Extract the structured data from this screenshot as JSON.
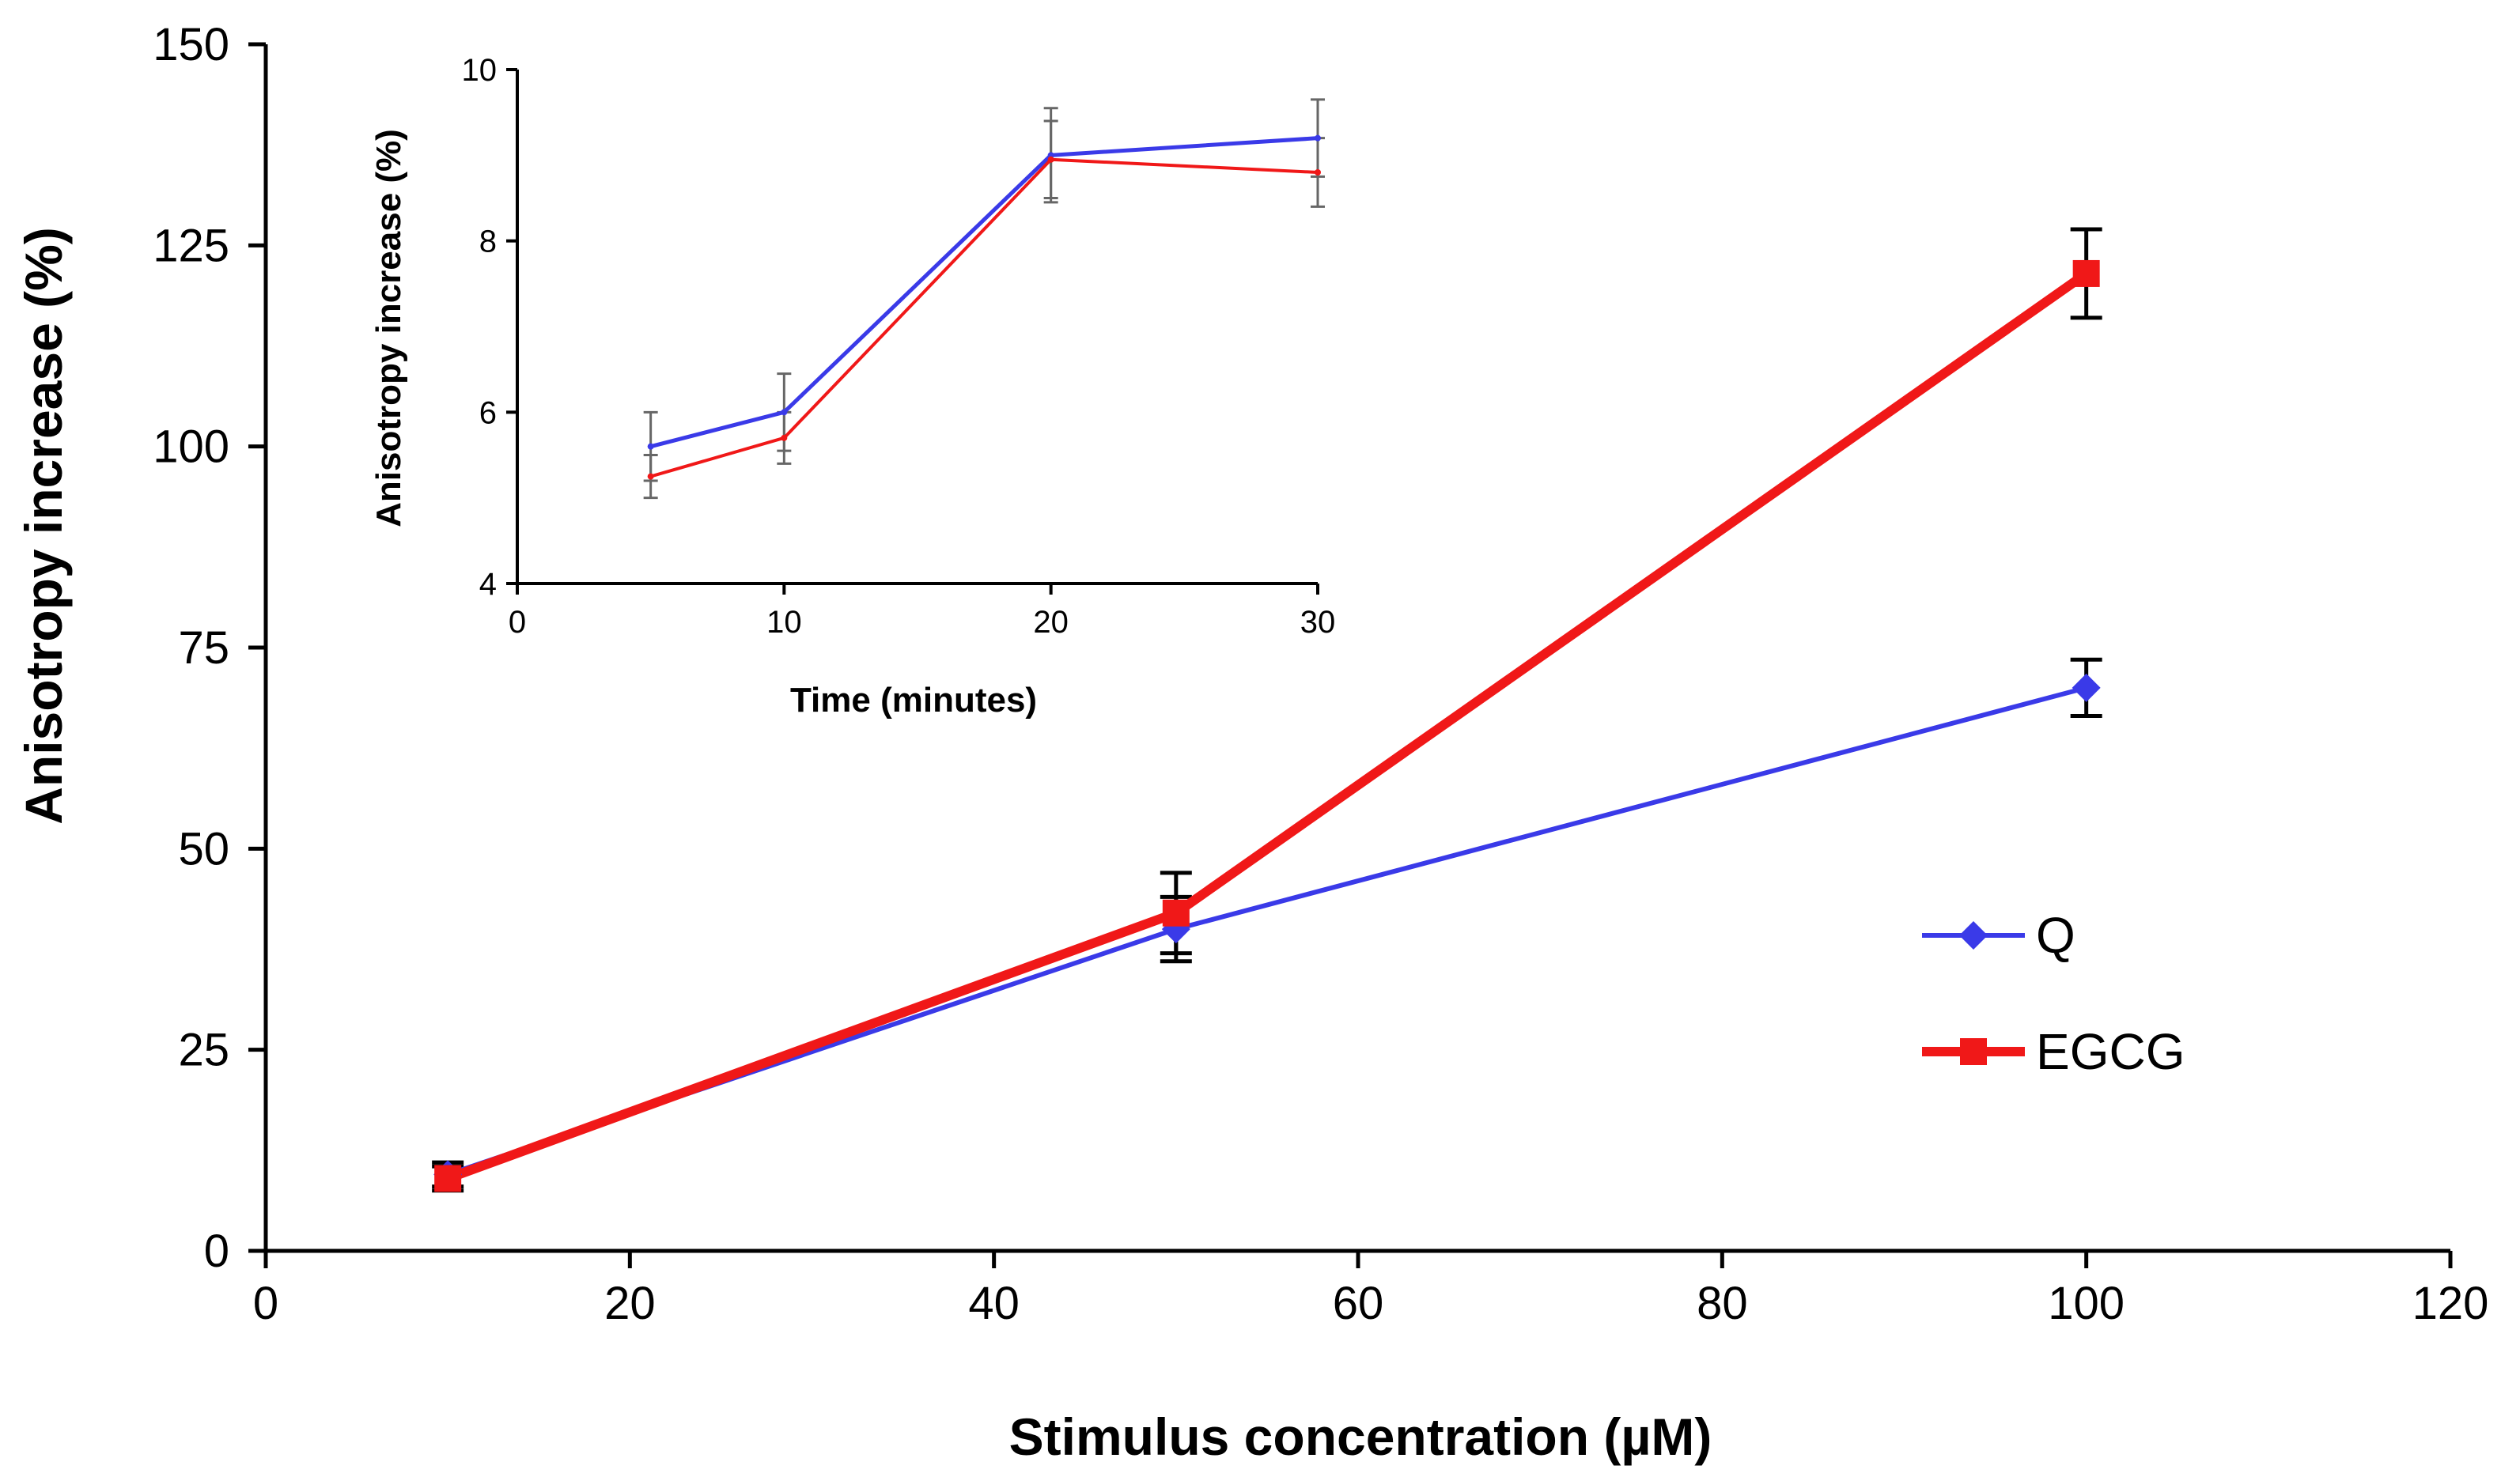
{
  "colors": {
    "Q": "#3a3ae8",
    "EGCG": "#f01818",
    "axis": "#000000",
    "error_bar": "#000000",
    "inset_error_bar": "#666666"
  },
  "chart_data": [
    {
      "id": "main",
      "type": "line",
      "xlabel": "Stimulus concentration (µM)",
      "ylabel": "Anisotropy increase (%)",
      "xlim": [
        0,
        120
      ],
      "ylim": [
        0,
        150
      ],
      "xticks": [
        0,
        20,
        40,
        60,
        80,
        100,
        120
      ],
      "yticks": [
        0,
        25,
        50,
        75,
        100,
        125,
        150
      ],
      "grid": false,
      "legend": "right",
      "series": [
        {
          "key": "Q",
          "name": "Q",
          "marker": "diamond",
          "x": [
            10,
            50,
            100
          ],
          "y": [
            9.5,
            40,
            70
          ],
          "err": [
            1.5,
            4,
            3.5
          ]
        },
        {
          "key": "EGCG",
          "name": "EGCG",
          "marker": "square",
          "x": [
            10,
            50,
            100
          ],
          "y": [
            9,
            42,
            121.5
          ],
          "err": [
            1.5,
            5,
            5.5
          ]
        }
      ]
    },
    {
      "id": "inset",
      "type": "line",
      "xlabel": "Time (minutes)",
      "ylabel": "Anisotropy increase (%)",
      "xlim": [
        0,
        30
      ],
      "ylim": [
        4,
        10
      ],
      "xticks": [
        0,
        10,
        20,
        30
      ],
      "yticks": [
        4,
        6,
        8,
        10
      ],
      "grid": false,
      "legend": "none",
      "series": [
        {
          "key": "Q",
          "x": [
            5,
            10,
            20,
            30
          ],
          "y": [
            5.6,
            6.0,
            9.0,
            9.2
          ],
          "err": [
            0.4,
            0.45,
            0.55,
            0.45
          ]
        },
        {
          "key": "EGCG",
          "x": [
            5,
            10,
            20,
            30
          ],
          "y": [
            5.25,
            5.7,
            8.95,
            8.8
          ],
          "err": [
            0.25,
            0.3,
            0.45,
            0.4
          ]
        }
      ]
    }
  ]
}
